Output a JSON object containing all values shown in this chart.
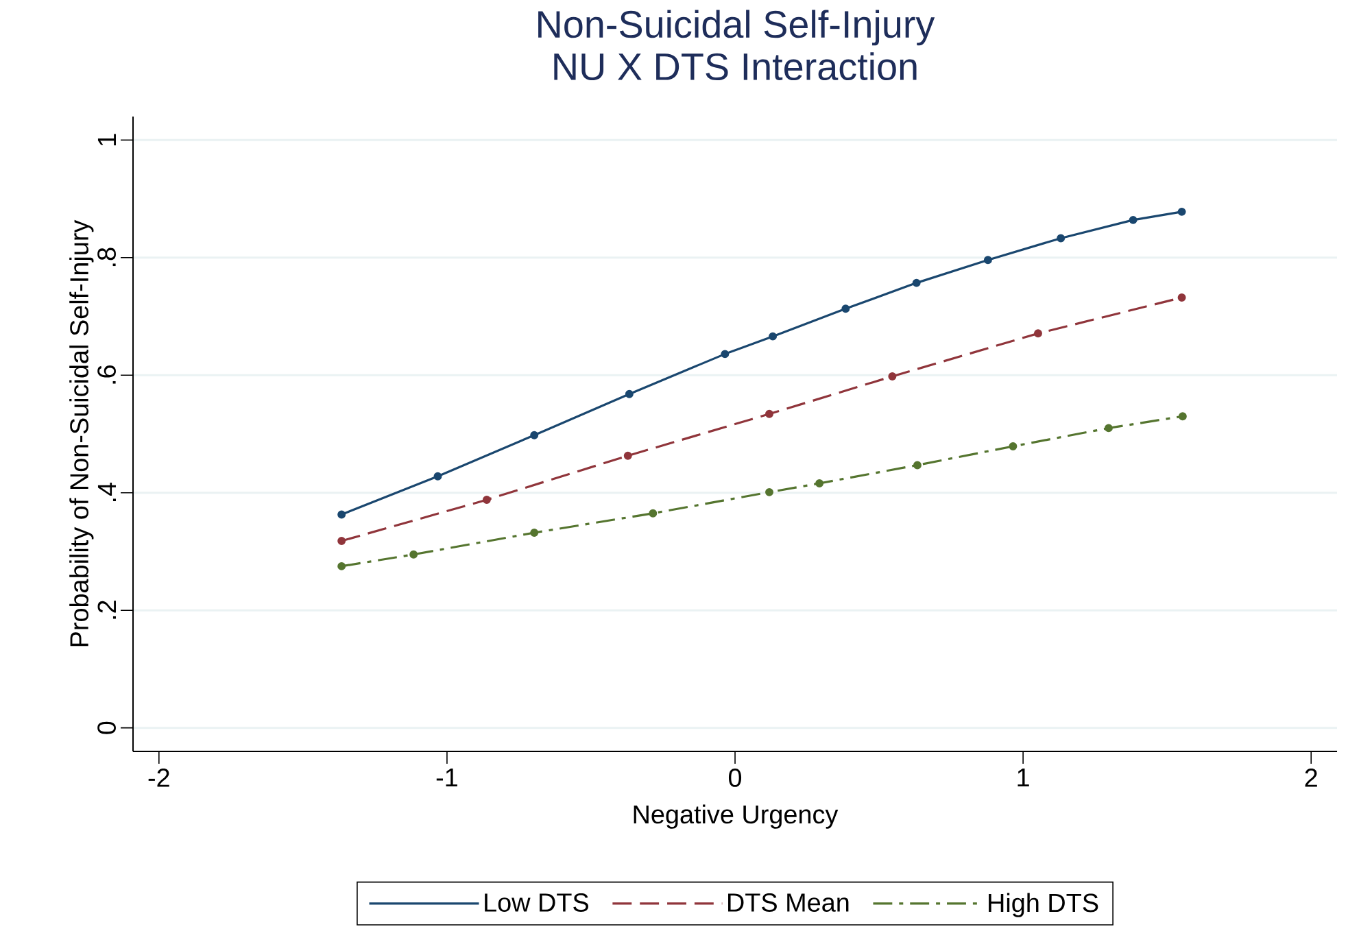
{
  "chart_data": {
    "type": "line",
    "title": "Non-Suicidal Self-Injury\nNU X DTS Interaction",
    "xlabel": "Negative Urgency",
    "ylabel": "Probability of Non-Suicidal Self-Injury",
    "xlim": [
      -2.09,
      2.09
    ],
    "xticks": [
      -2,
      -1,
      0,
      1,
      2
    ],
    "ylim": [
      -0.04,
      1.04
    ],
    "yticks": [
      {
        "value": 0,
        "label": "0"
      },
      {
        "value": 0.2,
        "label": ".2"
      },
      {
        "value": 0.4,
        "label": ".4"
      },
      {
        "value": 0.6,
        "label": ".6"
      },
      {
        "value": 0.8,
        "label": ".8"
      },
      {
        "value": 1,
        "label": "1"
      }
    ],
    "grid": "y",
    "legend": "bottom",
    "marker": "circle",
    "series": [
      {
        "name": "Low DTS",
        "color": "#1a476f",
        "line_style": "solid",
        "x": [
          -1.366,
          -1.032,
          -0.697,
          -0.367,
          -0.035,
          0.131,
          0.384,
          0.63,
          0.878,
          1.131,
          1.382,
          1.551
        ],
        "values": [
          0.363,
          0.428,
          0.498,
          0.568,
          0.636,
          0.666,
          0.713,
          0.757,
          0.796,
          0.833,
          0.864,
          0.878
        ]
      },
      {
        "name": "DTS Mean",
        "color": "#90353b",
        "line_style": "dashed",
        "x": [
          -1.366,
          -0.862,
          -0.372,
          0.119,
          0.546,
          1.052,
          1.551
        ],
        "values": [
          0.318,
          0.388,
          0.463,
          0.534,
          0.598,
          0.671,
          0.732
        ]
      },
      {
        "name": "High DTS",
        "color": "#55752f",
        "line_style": "dashdot",
        "x": [
          -1.366,
          -1.116,
          -0.697,
          -0.285,
          0.119,
          0.293,
          0.633,
          0.965,
          1.297,
          1.554
        ],
        "values": [
          0.275,
          0.295,
          0.332,
          0.365,
          0.401,
          0.416,
          0.447,
          0.479,
          0.51,
          0.53
        ]
      }
    ]
  }
}
